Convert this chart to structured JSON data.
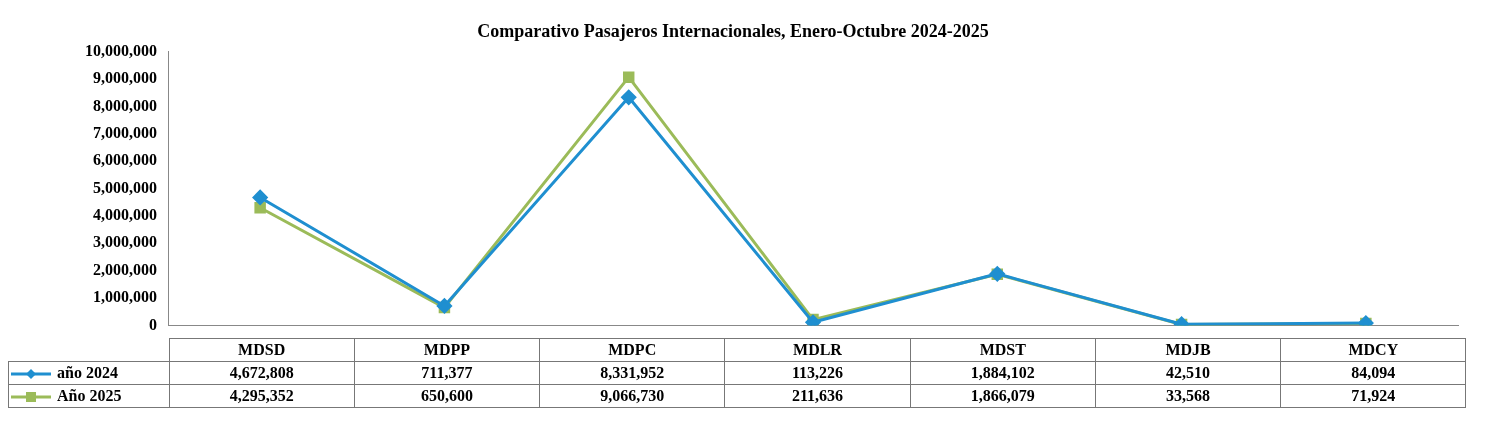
{
  "chart_data": {
    "type": "line",
    "title": "Comparativo Pasajeros Internacionales, Enero-Octubre 2024-2025",
    "categories": [
      "MDSD",
      "MDPP",
      "MDPC",
      "MDLR",
      "MDST",
      "MDJB",
      "MDCY"
    ],
    "series": [
      {
        "name": "año 2024",
        "color": "#1f8fd0",
        "marker": "diamond",
        "values": [
          4672808,
          711377,
          8331952,
          113226,
          1884102,
          42510,
          84094
        ],
        "value_labels": [
          "4,672,808",
          "711,377",
          "8,331,952",
          "113,226",
          "1,884,102",
          "42,510",
          "84,094"
        ]
      },
      {
        "name": "Año 2025",
        "color": "#9bbb59",
        "marker": "square",
        "values": [
          4295352,
          650600,
          9066730,
          211636,
          1866079,
          33568,
          71924
        ],
        "value_labels": [
          "4,295,352",
          "650,600",
          "9,066,730",
          "211,636",
          "1,866,079",
          "33,568",
          "71,924"
        ]
      }
    ],
    "ylim": [
      0,
      10000000
    ],
    "yticks": [
      0,
      {
        "value": 1000000,
        "label": "1,000,000"
      },
      {
        "value": 2000000,
        "label": "2,000,000"
      },
      {
        "value": 3000000,
        "label": "3,000,000"
      },
      {
        "value": 4000000,
        "label": "4,000,000"
      },
      {
        "value": 5000000,
        "label": "5,000,000"
      },
      {
        "value": 6000000,
        "label": "6,000,000"
      },
      {
        "value": 7000000,
        "label": "7,000,000"
      },
      {
        "value": 8000000,
        "label": "8,000,000"
      },
      {
        "value": 9000000,
        "label": "9,000,000"
      },
      {
        "value": 10000000,
        "label": "10,000,000"
      }
    ],
    "grid": false,
    "legend": "bottom left",
    "line_style": "solid"
  }
}
